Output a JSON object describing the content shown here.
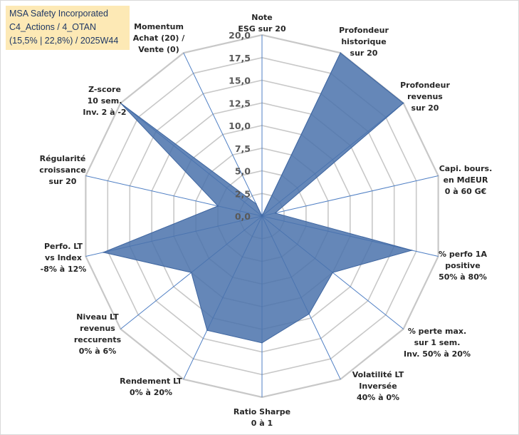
{
  "title": {
    "line1": "MSA Safety Incorporated",
    "line2": "C4_Actions / 4_OTAN",
    "line3": "(15,5% | 22,8%) / 2025W44"
  },
  "chart_data": {
    "type": "radar",
    "title": "MSA Safety Incorporated",
    "rmin": 0,
    "rmax": 20,
    "step": 2.5,
    "tick_labels": [
      "0,0",
      "2,5",
      "5,0",
      "7,5",
      "10,0",
      "12,5",
      "15,0",
      "17,5",
      "20,0"
    ],
    "categories": [
      {
        "lines": [
          "Note",
          "ESG sur 20"
        ]
      },
      {
        "lines": [
          "Profondeur",
          "historique",
          "sur 20"
        ]
      },
      {
        "lines": [
          "Profondeur",
          "revenus",
          "sur 20"
        ]
      },
      {
        "lines": [
          "Capi. bours.",
          "en MdEUR",
          "0 à 60 G€"
        ]
      },
      {
        "lines": [
          "% perfo 1A",
          "positive",
          "50% à 80%"
        ]
      },
      {
        "lines": [
          "% perte max.",
          "sur 1 sem.",
          "Inv. 50% à 20%"
        ]
      },
      {
        "lines": [
          "Volatilité LT",
          "Inversée",
          "40% à 0%"
        ]
      },
      {
        "lines": [
          "Ratio Sharpe",
          "0 à 1"
        ]
      },
      {
        "lines": [
          "Rendement LT",
          "0% à 20%"
        ]
      },
      {
        "lines": [
          "Niveau LT",
          "revenus",
          "reccurents",
          "0% à 6%"
        ]
      },
      {
        "lines": [
          "Perfo. LT",
          "vs Index",
          "-8% à 12%"
        ]
      },
      {
        "lines": [
          "Régularité",
          "croissance",
          "sur 20"
        ]
      },
      {
        "lines": [
          "Z-score",
          "10 sem.",
          "Inv. 2 à -2"
        ]
      },
      {
        "lines": [
          "Momentum",
          "Achat (20) /",
          "Vente (0)"
        ]
      }
    ],
    "series": [
      {
        "name": "MSA Safety Incorporated",
        "values": [
          0,
          20,
          20,
          1.5,
          17,
          10,
          12,
          14,
          14,
          10,
          18,
          5,
          20,
          1.5
        ],
        "color": "#4a72ac"
      }
    ],
    "grid": true
  }
}
